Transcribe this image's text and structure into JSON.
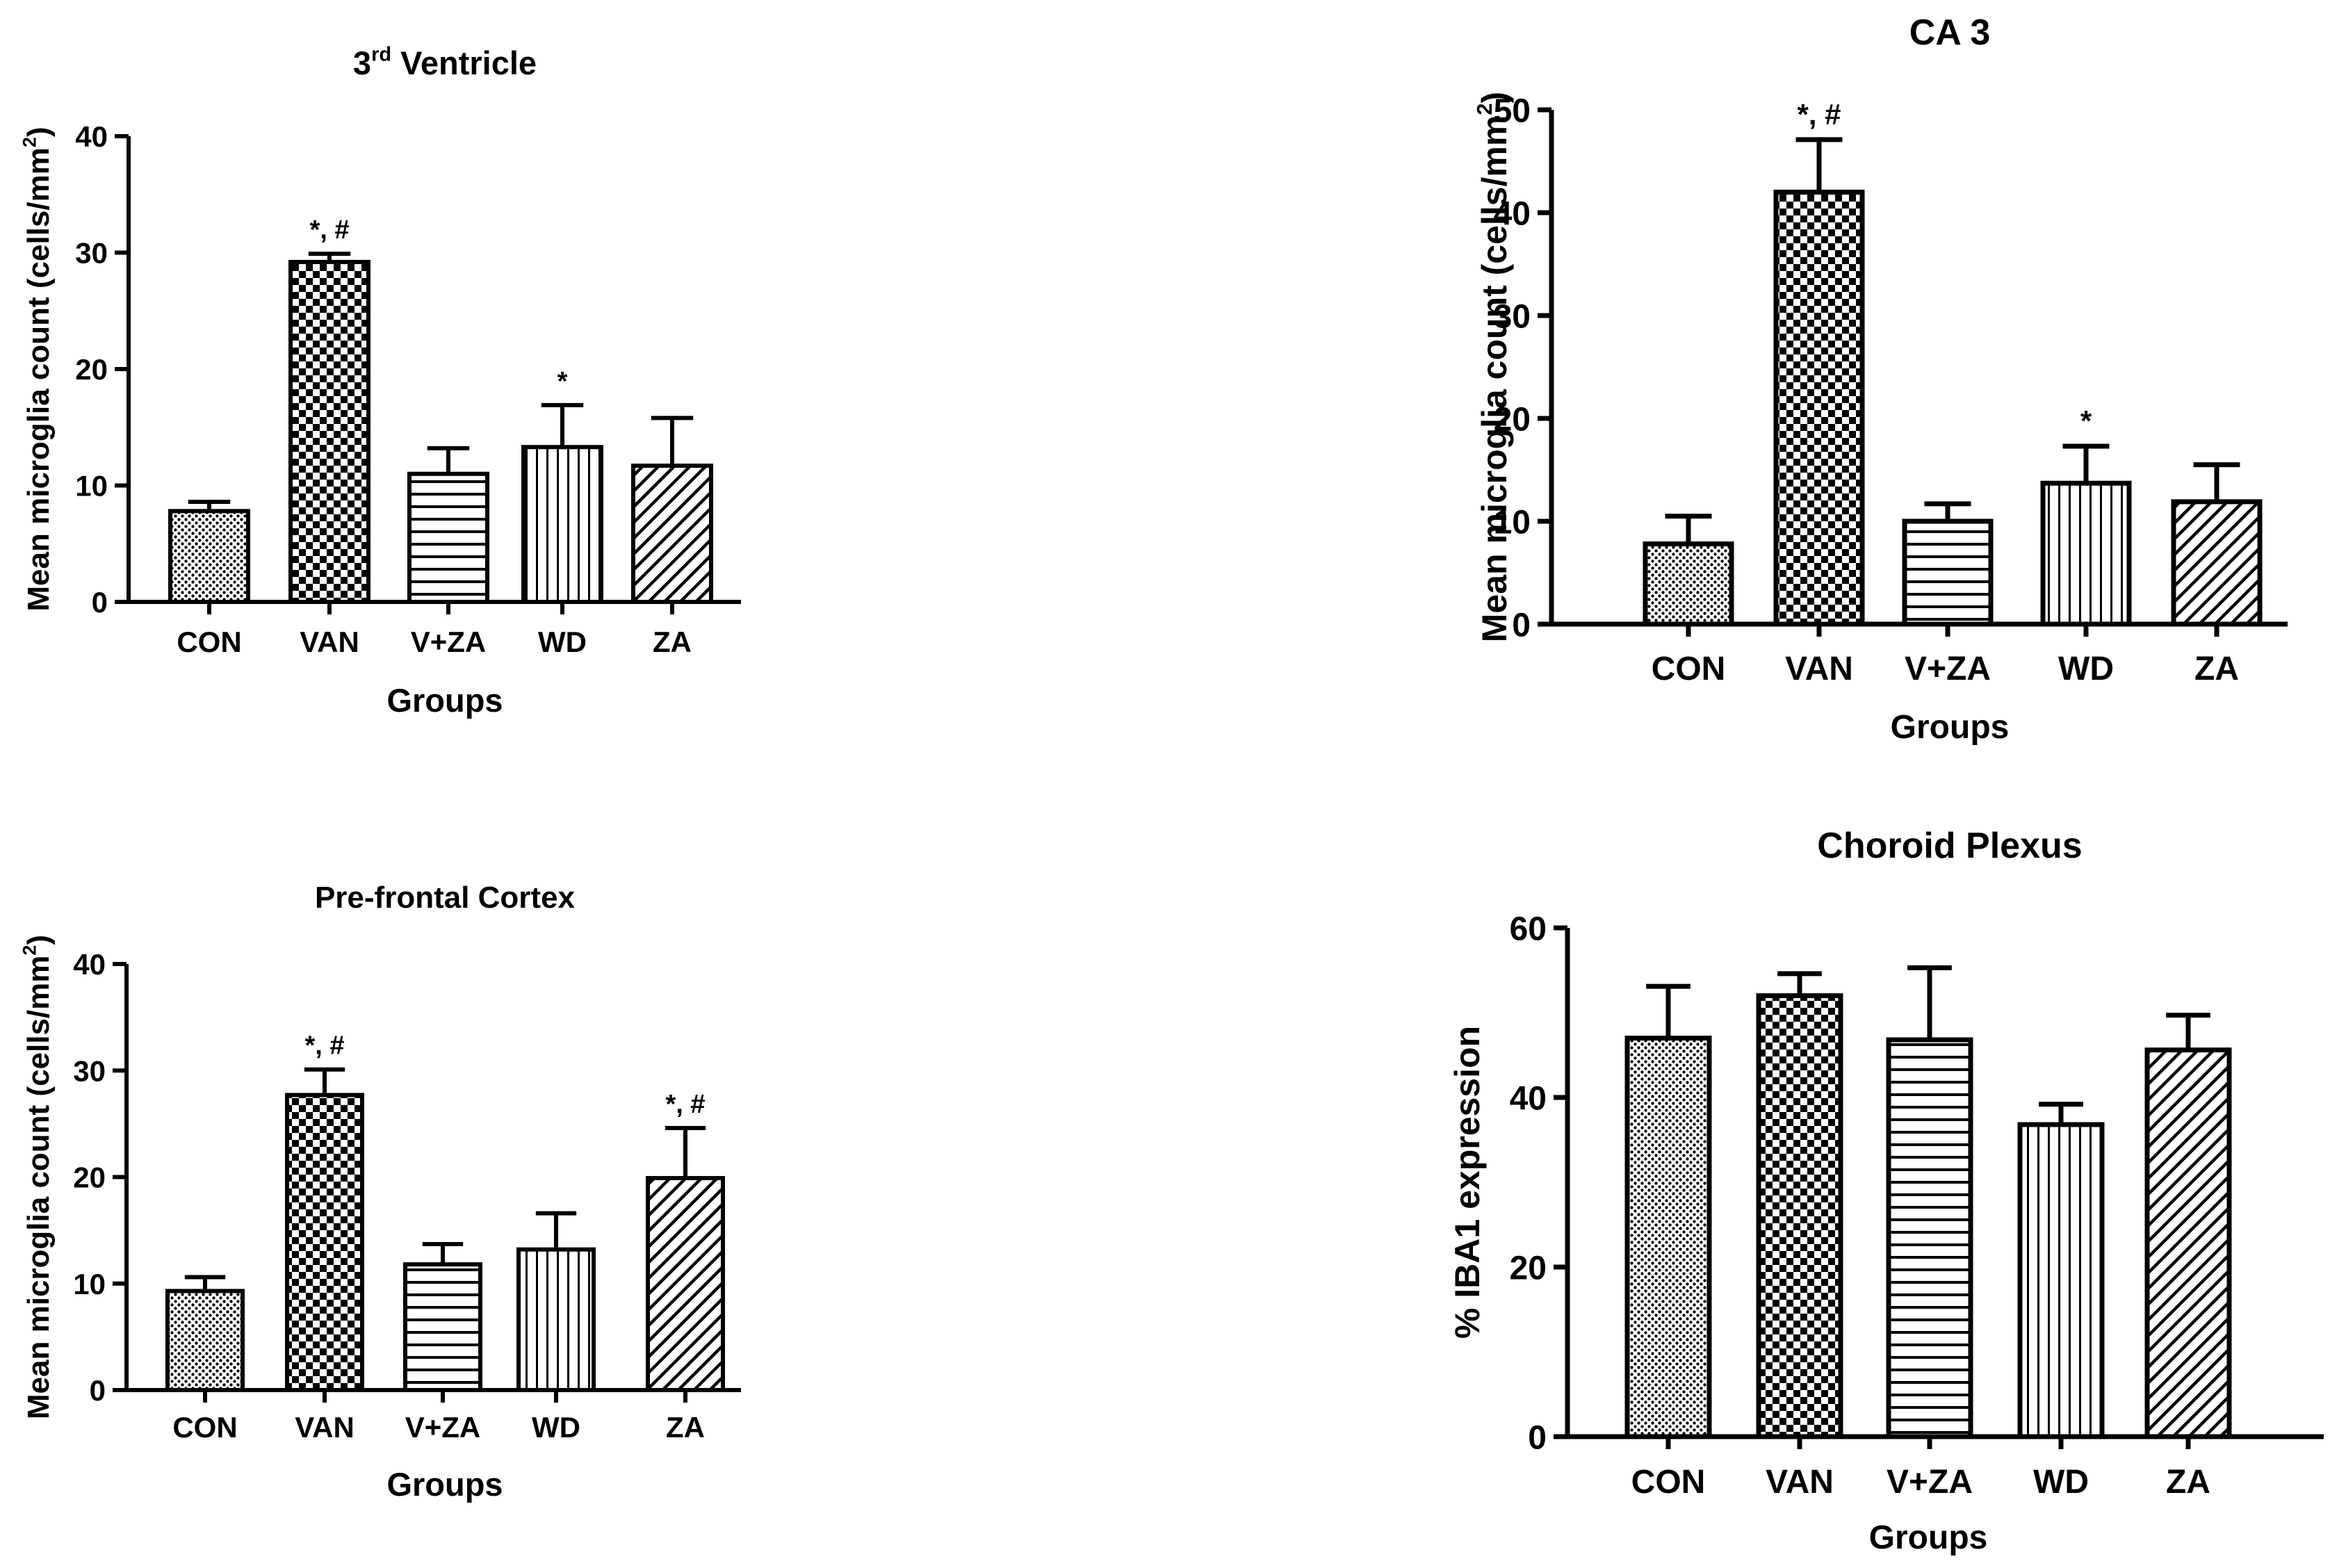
{
  "figure": {
    "description_free": true
  },
  "chart_data": [
    {
      "id": "p1",
      "type": "bar",
      "title": "3",
      "title_sup": "rd",
      "title_rest": " Ventricle",
      "xlabel": "Groups",
      "ylabel": "Mean microglia count (cells/mm",
      "ylabel_sup": "2",
      "ylabel_close": ")",
      "categories": [
        "CON",
        "VAN",
        "V+ZA",
        "WD",
        "ZA"
      ],
      "values": [
        7.8,
        29.2,
        11.0,
        13.3,
        11.7
      ],
      "errors": [
        0.8,
        0.7,
        2.2,
        3.6,
        4.1
      ],
      "annotations": [
        "",
        "*, #",
        "",
        "*",
        ""
      ],
      "patterns": [
        "dots",
        "checker",
        "hlines",
        "vlines",
        "diag"
      ],
      "ylim": [
        0,
        40
      ],
      "yticks": [
        0,
        10,
        20,
        30,
        40
      ],
      "ytick_labels": [
        "0",
        "10",
        "20",
        "30",
        "40"
      ]
    },
    {
      "id": "p2",
      "type": "bar",
      "title": "CA 3",
      "title_sup": "",
      "title_rest": "",
      "xlabel": "Groups",
      "ylabel": "Mean microglia count (cells/mm",
      "ylabel_sup": "2",
      "ylabel_close": ")",
      "categories": [
        "CON",
        "VAN",
        "V+ZA",
        "WD",
        "ZA"
      ],
      "values": [
        7.8,
        42.0,
        10.0,
        13.7,
        11.9
      ],
      "errors": [
        2.7,
        5.1,
        1.7,
        3.6,
        3.6
      ],
      "annotations": [
        "",
        "*, #",
        "",
        "*",
        ""
      ],
      "patterns": [
        "dots",
        "checker",
        "hlines",
        "vlines",
        "diag"
      ],
      "ylim": [
        0,
        50
      ],
      "yticks": [
        0,
        10,
        20,
        30,
        40,
        50
      ],
      "ytick_labels": [
        "0",
        "10",
        "20",
        "30",
        "40",
        "50"
      ]
    },
    {
      "id": "p3",
      "type": "bar",
      "title": "Pre-frontal Cortex",
      "title_sup": "",
      "title_rest": "",
      "xlabel": "Groups",
      "ylabel": "Mean microglia count (cells/mm",
      "ylabel_sup": "2",
      "ylabel_close": ")",
      "categories": [
        "CON",
        "VAN",
        "V+ZA",
        "WD",
        "ZA"
      ],
      "values": [
        9.3,
        27.7,
        11.8,
        13.2,
        19.9
      ],
      "errors": [
        1.3,
        2.4,
        1.9,
        3.4,
        4.7
      ],
      "annotations": [
        "",
        "*, #",
        "",
        "",
        "*, #"
      ],
      "patterns": [
        "dots",
        "checker",
        "hlines",
        "vlines",
        "diag"
      ],
      "ylim": [
        0,
        40
      ],
      "yticks": [
        0,
        10,
        20,
        30,
        40
      ],
      "ytick_labels": [
        "0",
        "10",
        "20",
        "30",
        "40"
      ]
    },
    {
      "id": "p4",
      "type": "bar",
      "title": "Choroid Plexus",
      "title_sup": "",
      "title_rest": "",
      "xlabel": "Groups",
      "ylabel": "% IBA1 expression",
      "ylabel_sup": "",
      "ylabel_close": "",
      "categories": [
        "CON",
        "VAN",
        "V+ZA",
        "WD",
        "ZA"
      ],
      "values": [
        47.0,
        52.0,
        46.8,
        36.8,
        45.6
      ],
      "errors": [
        6.1,
        2.6,
        8.5,
        2.4,
        4.1
      ],
      "annotations": [
        "",
        "",
        "",
        "",
        ""
      ],
      "patterns": [
        "dots",
        "checker",
        "hlines",
        "vlines",
        "diag"
      ],
      "ylim": [
        0,
        60
      ],
      "yticks": [
        0,
        20,
        40,
        60
      ],
      "ytick_labels": [
        "0",
        "20",
        "40",
        "60"
      ]
    }
  ]
}
